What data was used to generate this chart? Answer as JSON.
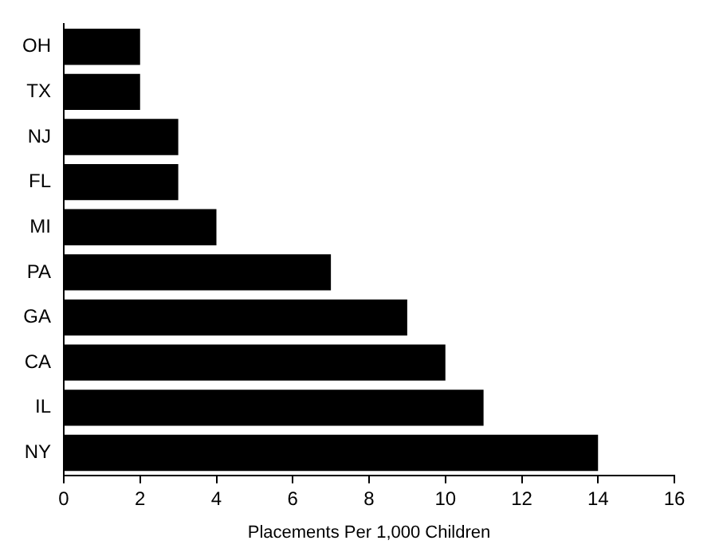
{
  "chart_data": {
    "type": "bar",
    "orientation": "horizontal",
    "xlabel": "Placements Per 1,000 Children",
    "categories": [
      "OH",
      "TX",
      "NJ",
      "FL",
      "MI",
      "PA",
      "GA",
      "CA",
      "IL",
      "NY"
    ],
    "values": [
      2,
      2,
      3,
      3,
      4,
      7,
      9,
      10,
      11,
      14
    ],
    "color": "#000000",
    "xlim": [
      0,
      16
    ],
    "xticks": [
      0,
      2,
      4,
      6,
      8,
      10,
      12,
      14,
      16
    ],
    "grid": false,
    "legend": false
  }
}
